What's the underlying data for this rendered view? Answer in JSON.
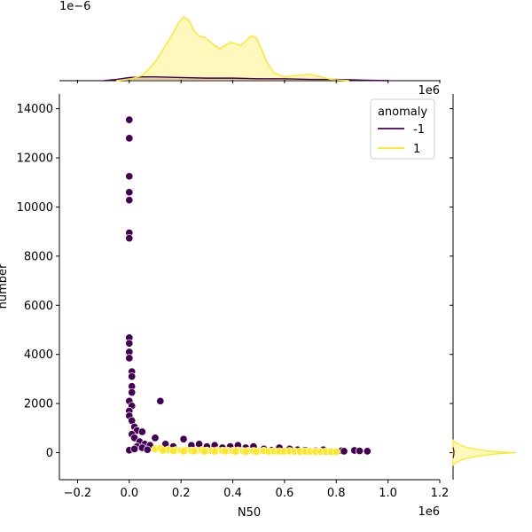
{
  "chart_data": {
    "type": "scatter",
    "xlabel": "N50",
    "ylabel": "number",
    "x_multiplier_label": "1e6",
    "y_multiplier_label": "",
    "xlim": [
      -0.27,
      1.2
    ],
    "ylim": [
      -1100,
      14600
    ],
    "xticks": [
      -0.2,
      0.0,
      0.2,
      0.4,
      0.6,
      0.8,
      1.0,
      1.2
    ],
    "xtick_labels": [
      "−0.2",
      "0.0",
      "0.2",
      "0.4",
      "0.6",
      "0.8",
      "1.0",
      "1.2"
    ],
    "yticks": [
      0,
      2000,
      4000,
      6000,
      8000,
      10000,
      12000,
      14000
    ],
    "ytick_labels": [
      "0",
      "2000",
      "4000",
      "6000",
      "8000",
      "10000",
      "12000",
      "14000"
    ],
    "grid": false,
    "legend": {
      "title": "anomaly",
      "placement": "top-right",
      "entries": [
        {
          "label": "-1",
          "color": "#440154"
        },
        {
          "label": "1",
          "color": "#fde725"
        }
      ]
    },
    "series": [
      {
        "name": "-1",
        "color": "#440154",
        "points": [
          [
            0.0,
            13550
          ],
          [
            0.0,
            12800
          ],
          [
            0.0,
            11250
          ],
          [
            0.0,
            10600
          ],
          [
            0.0,
            10280
          ],
          [
            0.0,
            8950
          ],
          [
            0.0,
            8730
          ],
          [
            0.0,
            4680
          ],
          [
            0.0,
            4450
          ],
          [
            0.0,
            4100
          ],
          [
            0.0,
            3850
          ],
          [
            0.01,
            3300
          ],
          [
            0.01,
            3100
          ],
          [
            0.01,
            2700
          ],
          [
            0.01,
            2450
          ],
          [
            0.0,
            2100
          ],
          [
            0.01,
            1900
          ],
          [
            0.0,
            1700
          ],
          [
            0.0,
            1500
          ],
          [
            0.01,
            1300
          ],
          [
            0.02,
            1050
          ],
          [
            0.03,
            900
          ],
          [
            0.01,
            750
          ],
          [
            0.02,
            600
          ],
          [
            0.05,
            850
          ],
          [
            0.04,
            450
          ],
          [
            0.06,
            350
          ],
          [
            0.03,
            250
          ],
          [
            0.12,
            2100
          ],
          [
            0.1,
            600
          ],
          [
            0.08,
            300
          ],
          [
            0.14,
            350
          ],
          [
            0.17,
            250
          ],
          [
            0.21,
            550
          ],
          [
            0.24,
            300
          ],
          [
            0.27,
            350
          ],
          [
            0.3,
            250
          ],
          [
            0.33,
            300
          ],
          [
            0.36,
            200
          ],
          [
            0.39,
            250
          ],
          [
            0.42,
            300
          ],
          [
            0.45,
            200
          ],
          [
            0.48,
            250
          ],
          [
            0.52,
            150
          ],
          [
            0.55,
            100
          ],
          [
            0.58,
            200
          ],
          [
            0.62,
            150
          ],
          [
            0.65,
            120
          ],
          [
            0.68,
            100
          ],
          [
            0.72,
            80
          ],
          [
            0.75,
            120
          ],
          [
            0.78,
            60
          ],
          [
            0.8,
            50
          ],
          [
            0.82,
            80
          ],
          [
            0.83,
            60
          ],
          [
            0.87,
            90
          ],
          [
            0.89,
            70
          ],
          [
            0.92,
            60
          ],
          [
            0.0,
            100
          ],
          [
            0.02,
            150
          ],
          [
            0.05,
            200
          ],
          [
            0.07,
            120
          ]
        ]
      },
      {
        "name": "1",
        "color": "#fde725",
        "points": [
          [
            0.1,
            150
          ],
          [
            0.12,
            180
          ],
          [
            0.15,
            120
          ],
          [
            0.18,
            100
          ],
          [
            0.2,
            90
          ],
          [
            0.22,
            110
          ],
          [
            0.24,
            80
          ],
          [
            0.26,
            90
          ],
          [
            0.28,
            100
          ],
          [
            0.3,
            80
          ],
          [
            0.32,
            70
          ],
          [
            0.34,
            90
          ],
          [
            0.36,
            75
          ],
          [
            0.38,
            80
          ],
          [
            0.4,
            70
          ],
          [
            0.42,
            85
          ],
          [
            0.44,
            60
          ],
          [
            0.46,
            70
          ],
          [
            0.48,
            65
          ],
          [
            0.5,
            60
          ],
          [
            0.52,
            75
          ],
          [
            0.54,
            55
          ],
          [
            0.56,
            60
          ],
          [
            0.58,
            50
          ],
          [
            0.6,
            55
          ],
          [
            0.62,
            60
          ],
          [
            0.64,
            50
          ],
          [
            0.66,
            45
          ],
          [
            0.68,
            55
          ],
          [
            0.7,
            50
          ],
          [
            0.72,
            45
          ],
          [
            0.74,
            40
          ],
          [
            0.76,
            45
          ],
          [
            0.78,
            40
          ],
          [
            0.8,
            35
          ],
          [
            0.13,
            90
          ],
          [
            0.17,
            70
          ],
          [
            0.21,
            60
          ],
          [
            0.25,
            65
          ],
          [
            0.29,
            55
          ],
          [
            0.33,
            50
          ],
          [
            0.37,
            60
          ],
          [
            0.41,
            50
          ],
          [
            0.45,
            45
          ],
          [
            0.49,
            40
          ]
        ]
      }
    ],
    "marginal_top": {
      "multiplier_label": "1e−6",
      "yellow_density": [
        [
          -0.05,
          0.0
        ],
        [
          0.0,
          0.02
        ],
        [
          0.05,
          0.08
        ],
        [
          0.08,
          0.2
        ],
        [
          0.11,
          0.35
        ],
        [
          0.14,
          0.55
        ],
        [
          0.17,
          0.75
        ],
        [
          0.19,
          0.9
        ],
        [
          0.21,
          1.0
        ],
        [
          0.23,
          0.95
        ],
        [
          0.25,
          0.78
        ],
        [
          0.27,
          0.7
        ],
        [
          0.29,
          0.68
        ],
        [
          0.31,
          0.62
        ],
        [
          0.33,
          0.55
        ],
        [
          0.35,
          0.5
        ],
        [
          0.37,
          0.55
        ],
        [
          0.39,
          0.6
        ],
        [
          0.41,
          0.58
        ],
        [
          0.43,
          0.55
        ],
        [
          0.45,
          0.62
        ],
        [
          0.47,
          0.7
        ],
        [
          0.49,
          0.68
        ],
        [
          0.51,
          0.5
        ],
        [
          0.53,
          0.3
        ],
        [
          0.56,
          0.12
        ],
        [
          0.6,
          0.06
        ],
        [
          0.65,
          0.08
        ],
        [
          0.7,
          0.1
        ],
        [
          0.74,
          0.06
        ],
        [
          0.78,
          0.02
        ],
        [
          0.85,
          0.0
        ]
      ],
      "purple_density": [
        [
          -0.1,
          0.0
        ],
        [
          -0.05,
          0.02
        ],
        [
          0.0,
          0.05
        ],
        [
          0.05,
          0.06
        ],
        [
          0.1,
          0.06
        ],
        [
          0.2,
          0.05
        ],
        [
          0.3,
          0.04
        ],
        [
          0.4,
          0.04
        ],
        [
          0.5,
          0.03
        ],
        [
          0.6,
          0.03
        ],
        [
          0.7,
          0.02
        ],
        [
          0.8,
          0.02
        ],
        [
          0.9,
          0.01
        ],
        [
          1.0,
          0.0
        ]
      ]
    },
    "marginal_right": {
      "multiplier_label": "1e6"
    }
  }
}
